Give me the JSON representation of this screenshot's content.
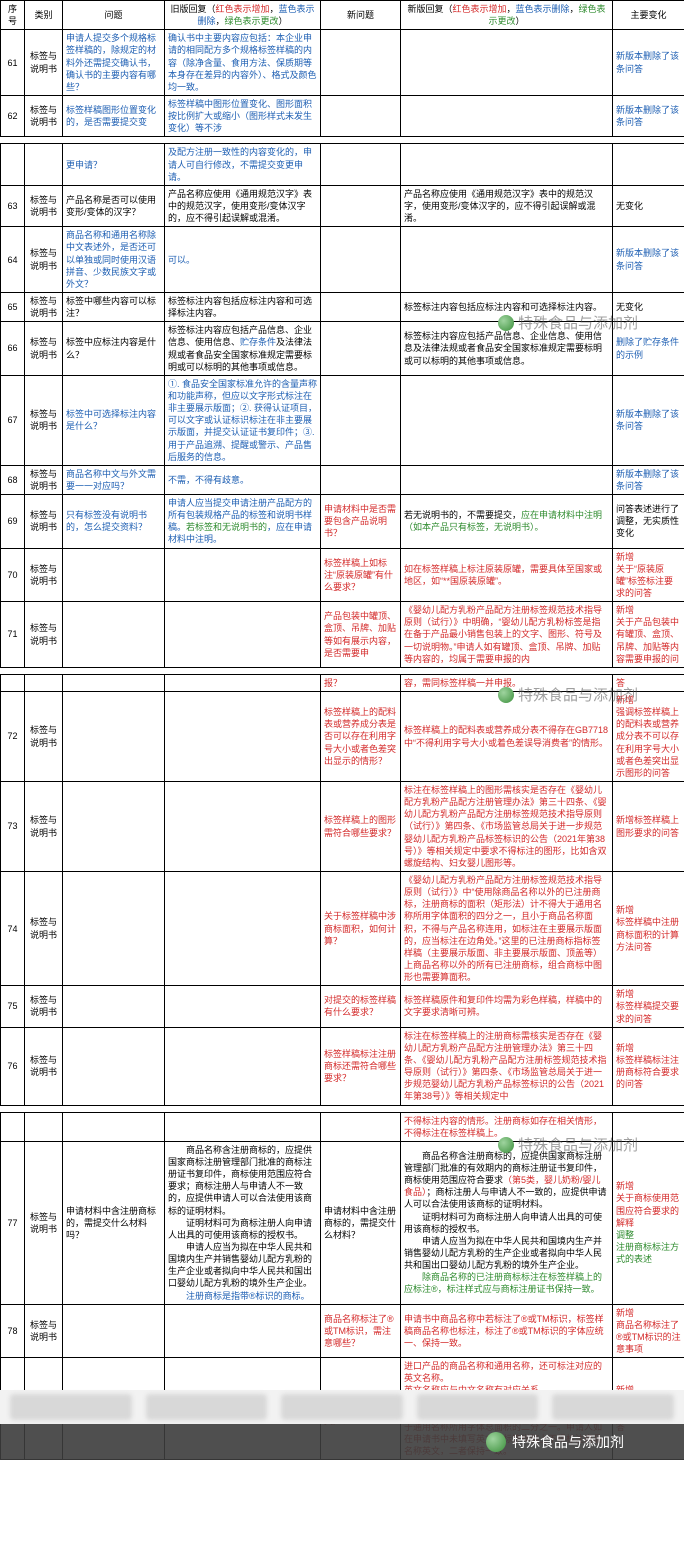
{
  "watermark_text": "特殊食品与添加剂",
  "header": {
    "seq": "序号",
    "cat": "类别",
    "q": "问题",
    "old": "旧版回复（",
    "old_red": "红色表示增加",
    "old_sep1": "，",
    "old_blue": "蓝色表示删除",
    "old_sep2": "，",
    "old_green": "绿色表示更改",
    "old_end": "）",
    "newq": "新问题",
    "newr": "新版回复（",
    "newr_red": "红色表示增加",
    "newr_sep1": "，",
    "newr_blue": "蓝色表示删除",
    "newr_sep2": "，",
    "newr_green": "绿色表示更改",
    "newr_end": "）",
    "chg": "主要变化"
  },
  "rows": [
    {
      "seq": "61",
      "cat": "标签与说明书",
      "q": "申请人提交多个规格标签样稿的，除规定的材料外还需提交确认书，确认书的主要内容有哪些？",
      "q_cls": "c-blue",
      "old": "确认书中主要内容应包括：本企业申请的相同配方多个规格标签样稿的内容（除净含量、食用方法、保质期等本身存在差异的内容外）、格式及颜色均一致。",
      "old_cls": "c-blue",
      "newq": "",
      "newr": "",
      "chg": "新版本删除了该条问答",
      "chg_cls": "c-blue"
    },
    {
      "seq": "62",
      "cat": "标签与说明书",
      "q": "标签样稿图形位置变化的，是否需要提交变",
      "q_cls": "c-blue",
      "old": "标签样稿中图形位置变化、图形面积按比例扩大或缩小（图形样式未发生变化）等不涉",
      "old_cls": "c-blue",
      "newq": "",
      "newr": "",
      "chg": "新版本删除了该条问答",
      "chg_cls": "c-blue"
    }
  ],
  "chunk2_top": {
    "q": "更申请？",
    "q_cls": "c-blue",
    "old": "及配方注册一致性的内容变化的，申请人可自行修改，不需提交变更申请。",
    "old_cls": "c-blue"
  },
  "rows2": [
    {
      "seq": "63",
      "cat": "标签与说明书",
      "q": "产品名称是否可以使用变形/变体的汉字？",
      "old": "产品名称应使用《通用规范汉字》表中的规范汉字，使用变形/变体汉字的，应不得引起误解或混淆。",
      "newr": "产品名称应使用《通用规范汉字》表中的规范汉字，使用变形/变体汉字的，应不得引起误解或混淆。",
      "chg": "无变化"
    },
    {
      "seq": "64",
      "cat": "标签与说明书",
      "q": "商品名称和通用名称除中文表述外，是否还可以单独或同时使用汉语拼音、少数民族文字或外文？",
      "q_cls": "c-blue",
      "old": "可以。",
      "old_cls": "c-blue",
      "chg": "新版本删除了该条问答",
      "chg_cls": "c-blue"
    },
    {
      "seq": "65",
      "cat": "标签与说明书",
      "q": "标签中哪些内容可以标注？",
      "old": "标签标注内容包括应标注内容和可选择标注内容。",
      "newr": "标签标注内容包括应标注内容和可选择标注内容。",
      "chg": "无变化"
    },
    {
      "seq": "66",
      "cat": "标签与说明书",
      "q": "标签中应标注内容是什么？",
      "old_parts": [
        {
          "t": "标签标注内容应包括产品信息、企业信息、使用信息、",
          "c": "c-black"
        },
        {
          "t": "贮存条件",
          "c": "c-blue"
        },
        {
          "t": "及法律法规或者食品安全国家标准规定需要标明或可以标明的其他事项或信息。",
          "c": "c-black"
        }
      ],
      "newr": "标签标注内容应包括产品信息、企业信息、使用信息及法律法规或者食品安全国家标准规定需要标明或可以标明的其他事项或信息。",
      "chg": "删除了贮存条件的示例",
      "chg_cls": "c-blue"
    },
    {
      "seq": "67",
      "cat": "标签与说明书",
      "q": "标签中可选择标注内容是什么？",
      "q_cls": "c-blue",
      "old": "①. 食品安全国家标准允许的含量声称和功能声称，但应以文字形式标注在非主要展示版面；②. 获得认证项目，可以文字或认证标识标注在非主要展示版面，并提交认证证书复印件；③. 用于产品追溯、提醒或警示、产品售后服务的信息。",
      "old_cls": "c-blue",
      "chg": "新版本删除了该条问答",
      "chg_cls": "c-blue"
    },
    {
      "seq": "68",
      "cat": "标签与说明书",
      "q": "商品名称中文与外文需要一一对应吗？",
      "q_cls": "c-blue",
      "old": "不需，不得有歧意。",
      "old_cls": "c-blue",
      "chg": "新版本删除了该条问答",
      "chg_cls": "c-blue"
    },
    {
      "seq": "69",
      "cat": "标签与说明书",
      "q": "只有标签没有说明书的，怎么提交资料？",
      "q_cls": "c-blue",
      "old_parts": [
        {
          "t": "申请人应当提交申请注册产品配方的所有包装规格产品的标签和说明书样稿。",
          "c": "c-blue"
        },
        {
          "t": "若标签和无说明书的",
          "c": "c-green"
        },
        {
          "t": "，应在申请材料中注明。",
          "c": "c-blue"
        }
      ],
      "newq": "申请材料中是否需要包含产品说明书？",
      "newq_cls": "c-red",
      "newr_parts": [
        {
          "t": "若无说明书的，不需要提交，",
          "c": "c-black"
        },
        {
          "t": "应在申请材料中注明（如本产品只有标签，无说明书）。",
          "c": "c-green"
        }
      ],
      "chg": "问答表述进行了调整，无实质性变化"
    },
    {
      "seq": "70",
      "cat": "标签与说明书",
      "newq": "标签样稿上如标注“原装原罐”有什么要求？",
      "newq_cls": "c-red",
      "newr": "如在标签样稿上标注原装原罐，需要具体至国家或地区，如“**国原装原罐”。",
      "newr_cls": "c-red",
      "chg": "新增\n关于“原装原罐”标签标注要求的问答",
      "chg_cls": "c-red"
    },
    {
      "seq": "71",
      "cat": "标签与说明书",
      "newq": "产品包装中罐顶、盒顶、吊牌、加贴等如有展示内容，是否需要申",
      "newq_cls": "c-red",
      "newr": "《婴幼儿配方乳粉产品配方注册标签规范技术指导原则（试行）》中明确，“婴幼儿配方乳粉标签是指在备于产品最小销售包装上的文字、图形、符号及一切说明物。”申请人如有罐顶、盒顶、吊牌、加贴等内容的，均属于需要申报的内",
      "newr_cls": "c-red",
      "chg": "新增\n关于产品包装中有罐顶、盒顶、吊牌、加贴等内容需要申报的问",
      "chg_cls": "c-red"
    }
  ],
  "chunk3_top": {
    "newq": "报？",
    "newq_cls": "c-red",
    "newr": "容，需同标签样稿一并申报。",
    "newr_cls": "c-red",
    "chg": "答",
    "chg_cls": "c-red"
  },
  "rows3": [
    {
      "seq": "72",
      "cat": "标签与说明书",
      "newq": "标签样稿上的配料表或营养成分表是否可以存在利用字号大小或者色差突出显示的情形？",
      "newq_cls": "c-red",
      "newr": "标签样稿上的配料表或营养成分表不得存在GB7718中“不得利用字号大小或着色差误导消费者”的情形。",
      "newr_cls": "c-red",
      "chg": "新增\n强调标签样稿上的配料表或营养成分表不可以存在利用字号大小或者色差突出显示图形的问答",
      "chg_cls": "c-red"
    },
    {
      "seq": "73",
      "cat": "标签与说明书",
      "newq": "标签样稿上的图形需符合哪些要求？",
      "newq_cls": "c-red",
      "newr": "标注在标签样稿上的图形需核实是否存在《婴幼儿配方乳粉产品配方注册管理办法》第三十四条、《婴幼儿配方乳粉产品配方注册标签规范技术指导原则（试行）》第四条、《市场监管总局关于进一步规范婴幼儿配方乳粉产品标签标识的公告（2021年第38号）》等相关规定中要求不得标注的图形，比如含双螺旋结构、妇女婴儿图形等。",
      "newr_cls": "c-red",
      "chg": "新增标签样稿上图形要求的问答",
      "chg_cls": "c-red"
    },
    {
      "seq": "74",
      "cat": "标签与说明书",
      "newq": "关于标签样稿中涉商标面积，如何计算？",
      "newq_cls": "c-red",
      "newr": "《婴幼儿配方乳粉产品配方注册标签规范技术指导原则（试行）》中“使用除商品名称以外的已注册商标，注册商标的面积（矩形法）计不得大于通用名称所用字体面积的四分之一，且小于商品名称面积，不得与产品名称连用，如标注在主要展示版面的，应当标注在边角处。”这里的已注册商标指标签样稿（主要展示版面、非主要展示版面、顶盖等）上商品名称以外的所有已注册商标，组合商标中图形也需要算面积。",
      "newr_cls": "c-red",
      "chg": "新增\n标签样稿中注册商标面积的计算方法问答",
      "chg_cls": "c-red"
    },
    {
      "seq": "75",
      "cat": "标签与说明书",
      "newq": "对提交的标签样稿有什么要求？",
      "newq_cls": "c-red",
      "newr": "标签样稿原件和复印件均需为彩色样稿，样稿中的文字要求清晰可辨。",
      "newr_cls": "c-red",
      "chg": "新增\n标签样稿提交要求的问答",
      "chg_cls": "c-red"
    },
    {
      "seq": "76",
      "cat": "标签与说明书",
      "newq": "标签样稿标注注册商标还需符合哪些要求？",
      "newq_cls": "c-red",
      "newr": "标注在标签样稿上的注册商标需核实是否存在《婴幼儿配方乳粉产品配方注册管理办法》第三十四条、《婴幼儿配方乳粉产品配方注册标签规范技术指导原则（试行）》第四条、《市场监管总局关于进一步规范婴幼儿配方乳粉产品标签标识的公告（2021年第38号）》等相关规定中",
      "newr_cls": "c-red",
      "chg": "新增\n标签样稿标注注册商标符合要求的问答",
      "chg_cls": "c-red"
    }
  ],
  "chunk4_top": {
    "newr": "不得标注内容的情形。注册商标如存在相关情形，不得标注在标签样稿上。",
    "newr_cls": "c-red"
  },
  "rows4": [
    {
      "seq": "77",
      "cat": "标签与说明书",
      "q": "申请材料中含注册商标的，需提交什么材料吗？",
      "old_parts": [
        {
          "t": "　　商品名称含注册商标的，应提供国家商标注册管理部门批准的商标注册证书复印件，商标使用范围应符合要求；商标注册人与申请人不一致的，应提供申请人可以合法使用该商标的证明材料。\n　　证明材料可为商标注册人向申请人出具的可使用该商标的授权书。\n　　申请人应当为拟在中华人民共和国境内生产并销售婴幼儿配方乳粉的生产企业或者拟向中华人民共和国出口婴幼儿配方乳粉的境外生产企业。\n",
          "c": "c-black"
        },
        {
          "t": "　　注册商标是指带®标识的商标。",
          "c": "c-blue"
        }
      ],
      "newq": "申请材料中含注册商标的，需提交什么材料？",
      "newr_parts": [
        {
          "t": "　　商品名称含注册商标的，应提供国家商标注册管理部门批准的有效期内的商标注册证书复印件，商标使用范围应符合要求",
          "c": "c-black"
        },
        {
          "t": "（第5类，婴儿奶粉/婴儿食品）",
          "c": "c-red"
        },
        {
          "t": "；商标注册人与申请人不一致的，应提供申请人可以合法使用该商标的证明材料。\n　　证明材料可为商标注册人向申请人出具的可使用该商标的授权书。\n　　申请人应当为拟在中华人民共和国境内生产并销售婴幼儿配方乳粉的生产企业或者拟向中华人民共和国出口婴幼儿配方乳粉的境外生产企业。\n",
          "c": "c-black"
        },
        {
          "t": "　　除商品名称的已注册商标标注在标签样稿上的应标注®，标注样式应与商标注册证书保持一致。",
          "c": "c-green"
        }
      ],
      "chg_parts": [
        {
          "t": "新增\n关于商标使用范围应符合要求的解释\n",
          "c": "c-red"
        },
        {
          "t": "调整\n注册商标标注方式的表述",
          "c": "c-green"
        }
      ]
    },
    {
      "seq": "78",
      "cat": "标签与说明书",
      "newq": "商品名称标注了®或TM标识，需注意哪些？",
      "newq_cls": "c-red",
      "newr": "申请书中商品名称中若标注了®或TM标识，标签样稿商品名称也标注，标注了®或TM标识的字体应统一、保持一致。",
      "newr_cls": "c-red",
      "chg": "新增\n商品名称标注了®或TM标识的注意事项",
      "chg_cls": "c-red"
    },
    {
      "seq": "79",
      "cat": "标签与说明书",
      "newq": "进口产品如何标注商品名称（英文）？",
      "newq_cls": "c-red",
      "newr": "进口产品的商品名称和通用名称，还可标注对应的英文名称。\n英文名称应与中文名称有对应关系。\n标签上商品名称（英文）应与申请书英文名称保持一致，且商品名称（含中英文）字体总面积不得大于通用名称所用字体总面积的二分之一。申请人如在申请书中未填写英文，标签样稿上不得标注商品名称英文，二者保持一致。",
      "newr_cls": "c-red",
      "chg": "新增\n进口产品如何标注商品名称的问答",
      "chg_cls": "c-red"
    }
  ]
}
